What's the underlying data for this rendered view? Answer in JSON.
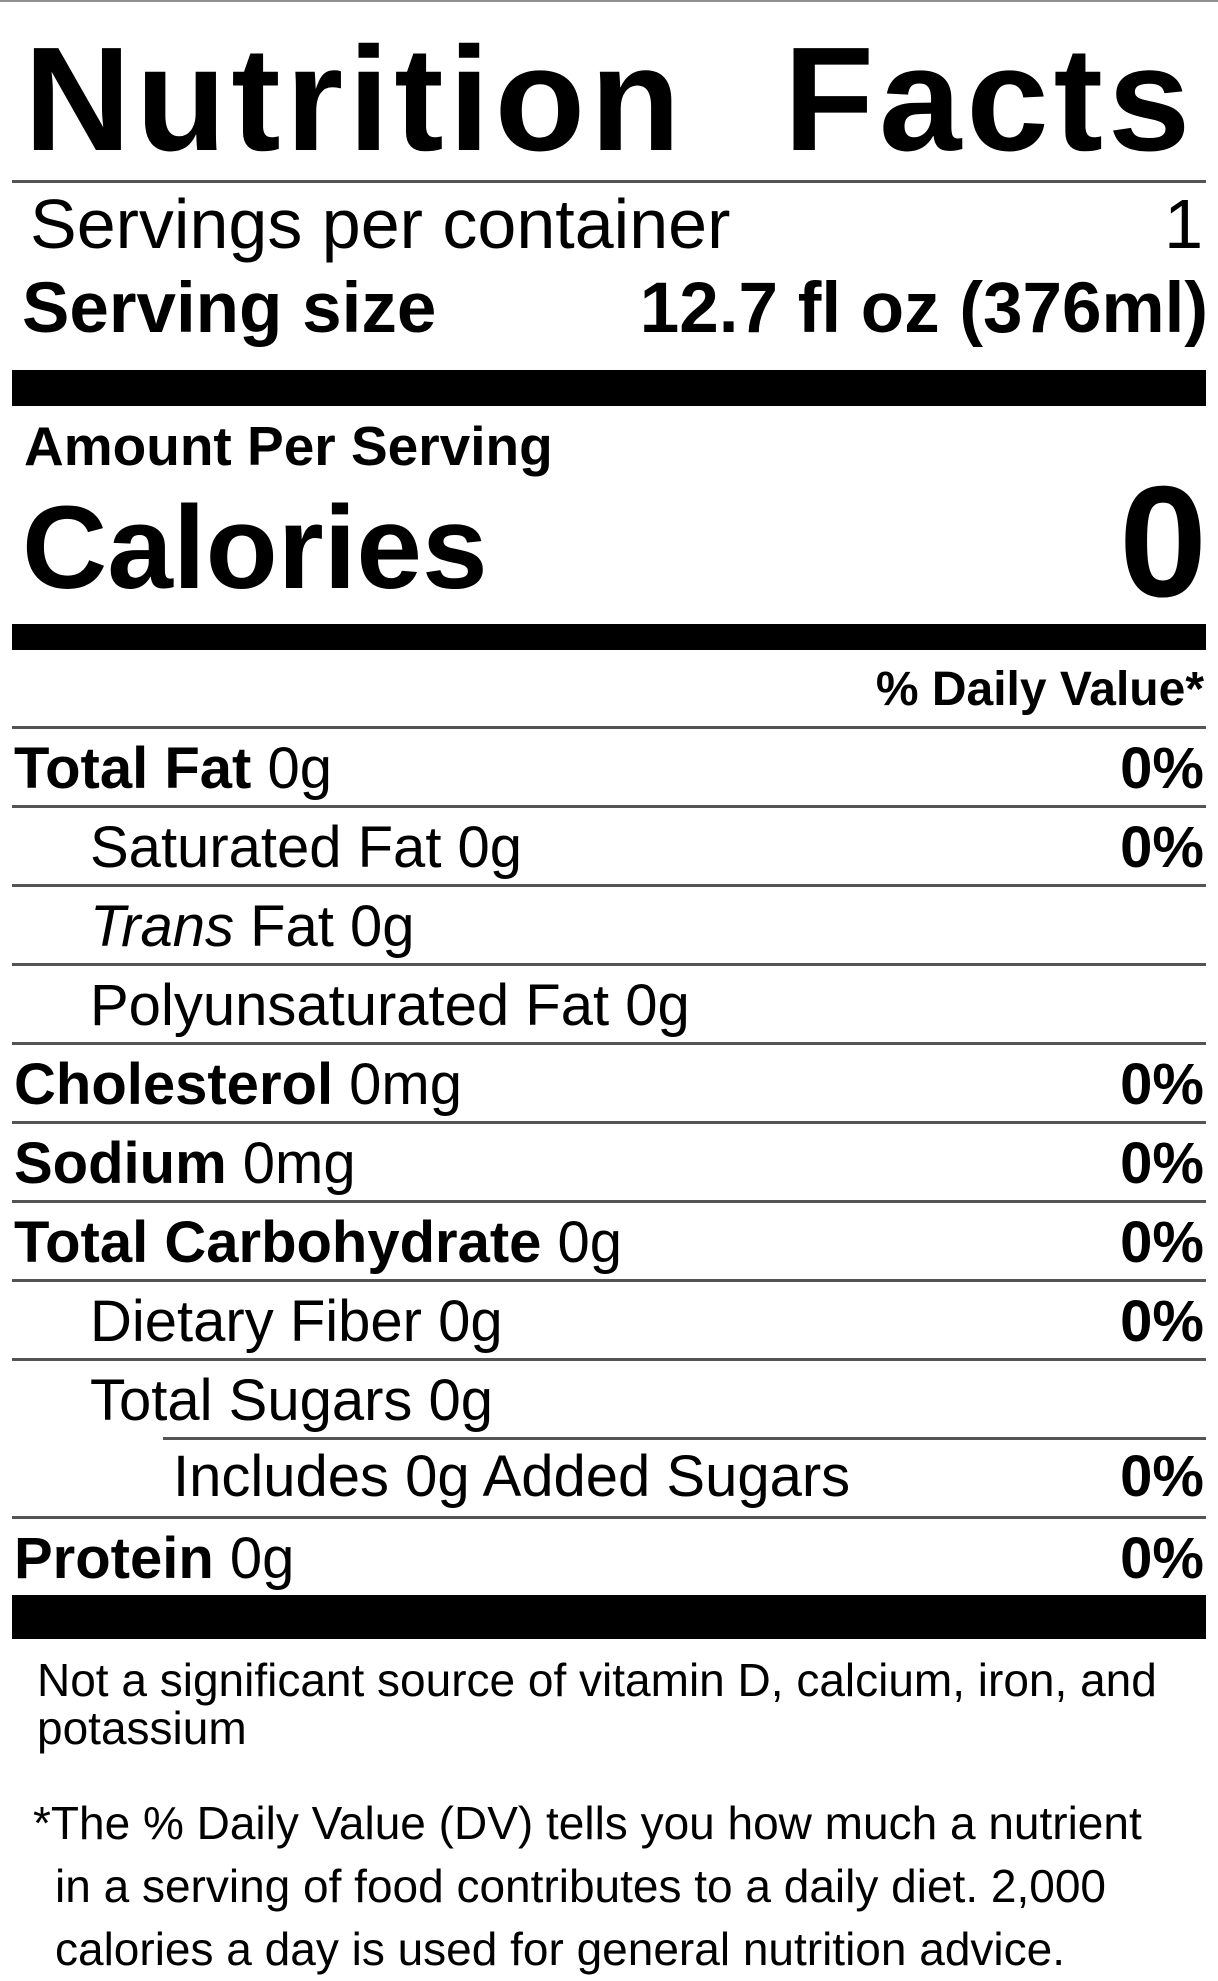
{
  "title": "Nutrition Facts",
  "servings_per_container": {
    "label": "Servings per container",
    "value": "1"
  },
  "serving_size": {
    "label": "Serving size",
    "value": "12.7 fl oz (376ml)"
  },
  "amount_per_serving": "Amount Per Serving",
  "calories": {
    "label": "Calories",
    "value": "0"
  },
  "daily_value_header": "% Daily Value*",
  "nutrients": [
    {
      "name": "Total Fat",
      "amount": "0g",
      "dv": "0%",
      "bold": true,
      "indent": 0
    },
    {
      "name": "Saturated Fat",
      "amount": "0g",
      "dv": "0%",
      "bold": false,
      "indent": 1
    },
    {
      "italic": "Trans",
      "name": "Fat",
      "amount": "0g",
      "dv": "",
      "bold": false,
      "indent": 1
    },
    {
      "name": "Polyunsaturated Fat",
      "amount": "0g",
      "dv": "",
      "bold": false,
      "indent": 1
    },
    {
      "name": "Cholesterol",
      "amount": "0mg",
      "dv": "0%",
      "bold": true,
      "indent": 0
    },
    {
      "name": "Sodium",
      "amount": "0mg",
      "dv": "0%",
      "bold": true,
      "indent": 0
    },
    {
      "name": "Total Carbohydrate",
      "amount": "0g",
      "dv": "0%",
      "bold": true,
      "indent": 0
    },
    {
      "name": "Dietary Fiber",
      "amount": "0g",
      "dv": "0%",
      "bold": false,
      "indent": 1
    },
    {
      "name": "Total Sugars",
      "amount": "0g",
      "dv": "",
      "bold": false,
      "indent": 1
    },
    {
      "name": "Includes 0g Added Sugars",
      "amount": "",
      "dv": "0%",
      "bold": false,
      "indent": 2,
      "partial_rule": true
    },
    {
      "name": "Protein",
      "amount": "0g",
      "dv": "0%",
      "bold": true,
      "indent": 0
    }
  ],
  "footnote_source": "Not a significant source of vitamin D, calcium, iron, and potassium",
  "footnote_dv": {
    "marker": "*",
    "text": "The % Daily Value (DV) tells you how much a nutrient in a serving of food contributes to a daily diet. 2,000 calories a day is used for general nutrition advice."
  },
  "colors": {
    "text": "#000000",
    "bars": "#000000",
    "rules": "#545454"
  }
}
